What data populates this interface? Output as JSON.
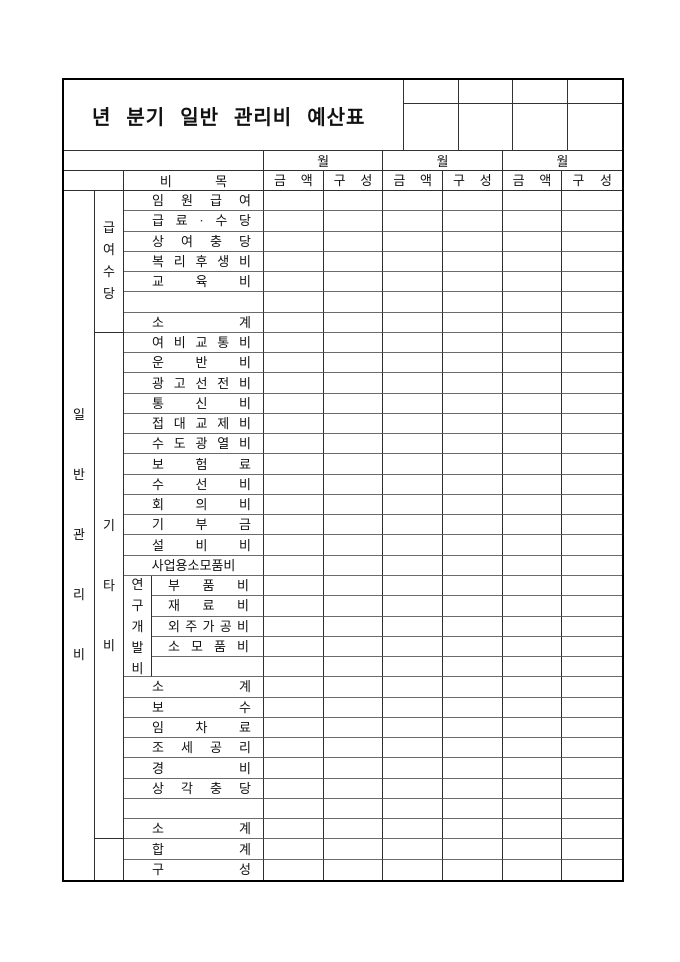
{
  "title": "년 분기 일반 관리비 예산표",
  "header": {
    "item_col": "비 목",
    "months": [
      {
        "label": "월",
        "amount": "금 액",
        "comp": "구 성"
      },
      {
        "label": "월",
        "amount": "금 액",
        "comp": "구 성"
      },
      {
        "label": "월",
        "amount": "금 액",
        "comp": "구 성"
      }
    ]
  },
  "categories": {
    "outer": "일\n반\n관\n리\n비",
    "group1": "급\n여\n수\n당",
    "group2": "기\n타\n비",
    "subgroup": "연\n구\n개\n발\n비"
  },
  "rows": [
    {
      "label": "임 원 급 여",
      "nested": false
    },
    {
      "label": "급 료 · 수 당",
      "nested": false
    },
    {
      "label": "상 여 충 당",
      "nested": false
    },
    {
      "label": "복 리 후 생 비",
      "nested": false
    },
    {
      "label": "교 육 비",
      "nested": false
    },
    {
      "label": "",
      "nested": false
    },
    {
      "label": "소 계",
      "nested": false
    },
    {
      "label": "여 비 교 통 비",
      "nested": false
    },
    {
      "label": "운 반 비",
      "nested": false
    },
    {
      "label": "광 고 선 전 비",
      "nested": false
    },
    {
      "label": "통 신 비",
      "nested": false
    },
    {
      "label": "접 대 교 제 비",
      "nested": false
    },
    {
      "label": "수 도 광 열 비",
      "nested": false
    },
    {
      "label": "보 험 료",
      "nested": false
    },
    {
      "label": "수 선 비",
      "nested": false
    },
    {
      "label": "회 의 비",
      "nested": false
    },
    {
      "label": "기 부 금",
      "nested": false
    },
    {
      "label": "설 비 비",
      "nested": false
    },
    {
      "label": "사업용소모품비",
      "nested": false
    },
    {
      "label": "부 품 비",
      "nested": true
    },
    {
      "label": "재 료 비",
      "nested": true
    },
    {
      "label": "외 주 가 공 비",
      "nested": true
    },
    {
      "label": "소 모 품 비",
      "nested": true
    },
    {
      "label": "",
      "nested": true
    },
    {
      "label": "소 계",
      "nested": false
    },
    {
      "label": "보 수",
      "nested": false
    },
    {
      "label": "임 차 료",
      "nested": false
    },
    {
      "label": "조 세 공 리",
      "nested": false
    },
    {
      "label": "경 비",
      "nested": false
    },
    {
      "label": "상 각 충 당",
      "nested": false
    },
    {
      "label": "",
      "nested": false
    },
    {
      "label": "소 계",
      "nested": false
    },
    {
      "label": "합 계",
      "nested": false
    },
    {
      "label": "구 성",
      "nested": false
    }
  ],
  "colors": {
    "border_dark": "#2e2e2e",
    "border_light": "#6b6b6b",
    "ink": "#111111",
    "paper": "#ffffff"
  }
}
